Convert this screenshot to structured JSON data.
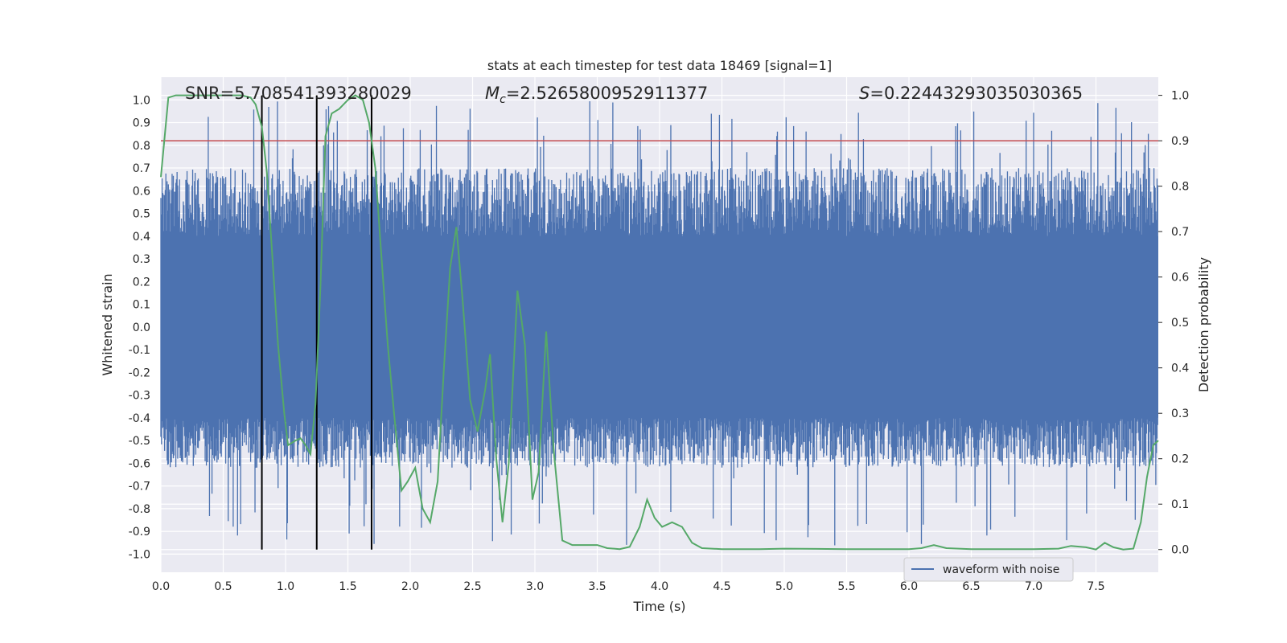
{
  "chart_data": {
    "type": "line",
    "title": "stats at each timestep for test data 18469 [signal=1]",
    "xlabel": "Time (s)",
    "ylabel_left": "Whitened strain",
    "ylabel_right": "Detection probability",
    "xlim": [
      0,
      8
    ],
    "ylim_left": [
      -1.08,
      1.1
    ],
    "ylim_right": [
      -0.05,
      1.04
    ],
    "x_ticks": [
      "0.0",
      "0.5",
      "1.0",
      "1.5",
      "2.0",
      "2.5",
      "3.0",
      "3.5",
      "4.0",
      "4.5",
      "5.0",
      "5.5",
      "6.0",
      "6.5",
      "7.0",
      "7.5"
    ],
    "x_tick_values": [
      0,
      0.5,
      1,
      1.5,
      2,
      2.5,
      3,
      3.5,
      4,
      4.5,
      5,
      5.5,
      6,
      6.5,
      7,
      7.5
    ],
    "y_left_ticks": [
      "1.0",
      "0.9",
      "0.8",
      "0.7",
      "0.6",
      "0.5",
      "0.4",
      "0.3",
      "0.2",
      "0.1",
      "0.0",
      "-0.1",
      "-0.2",
      "-0.3",
      "-0.4",
      "-0.5",
      "-0.6",
      "-0.7",
      "-0.8",
      "-0.9",
      "-1.0"
    ],
    "y_left_tick_values": [
      1.0,
      0.9,
      0.8,
      0.7,
      0.6,
      0.5,
      0.4,
      0.3,
      0.2,
      0.1,
      0.0,
      -0.1,
      -0.2,
      -0.3,
      -0.4,
      -0.5,
      -0.6,
      -0.7,
      -0.8,
      -0.9,
      -1.0
    ],
    "y_right_ticks": [
      "1.0",
      "0.9",
      "0.8",
      "0.7",
      "0.6",
      "0.5",
      "0.4",
      "0.3",
      "0.2",
      "0.1",
      "0.0"
    ],
    "y_right_tick_values": [
      1.0,
      0.9,
      0.8,
      0.7,
      0.6,
      0.5,
      0.4,
      0.3,
      0.2,
      0.1,
      0.0
    ],
    "grid": true,
    "legend": {
      "position": "bottom-right",
      "entries": [
        "waveform with noise"
      ]
    },
    "annotations": {
      "snr": "SNR=5.708541393280029",
      "mc_symbol": "M",
      "mc_sub": "c",
      "mc_value": "=2.5265800952911377",
      "s_symbol": "S",
      "s_value": "=0.22443293035030365"
    },
    "threshold": {
      "y_right": 0.9,
      "color": "#c44e52"
    },
    "vertical_lines": {
      "x": [
        0.81,
        1.25,
        1.69
      ],
      "y_right_range": [
        0.0,
        1.0
      ],
      "color": "#000000"
    },
    "waveform": {
      "name": "waveform with noise",
      "color": "#4c72b0",
      "x_range": [
        0,
        8
      ],
      "core_range": [
        -0.4,
        0.4
      ],
      "peak_range": [
        -0.97,
        1.0
      ],
      "sample_count": 1600
    },
    "detection_probability": {
      "color": "#55a868",
      "points": [
        [
          0.0,
          0.82
        ],
        [
          0.06,
          0.995
        ],
        [
          0.12,
          1.0
        ],
        [
          0.3,
          1.0
        ],
        [
          0.5,
          1.0
        ],
        [
          0.65,
          1.0
        ],
        [
          0.72,
          0.995
        ],
        [
          0.76,
          0.98
        ],
        [
          0.81,
          0.93
        ],
        [
          0.85,
          0.83
        ],
        [
          0.9,
          0.62
        ],
        [
          0.94,
          0.45
        ],
        [
          0.99,
          0.3
        ],
        [
          1.02,
          0.23
        ],
        [
          1.08,
          0.24
        ],
        [
          1.12,
          0.245
        ],
        [
          1.16,
          0.23
        ],
        [
          1.2,
          0.21
        ],
        [
          1.24,
          0.32
        ],
        [
          1.28,
          0.58
        ],
        [
          1.32,
          0.91
        ],
        [
          1.37,
          0.96
        ],
        [
          1.43,
          0.97
        ],
        [
          1.5,
          0.99
        ],
        [
          1.56,
          1.0
        ],
        [
          1.62,
          0.99
        ],
        [
          1.67,
          0.94
        ],
        [
          1.72,
          0.84
        ],
        [
          1.76,
          0.68
        ],
        [
          1.82,
          0.45
        ],
        [
          1.87,
          0.3
        ],
        [
          1.93,
          0.13
        ],
        [
          1.98,
          0.15
        ],
        [
          2.04,
          0.18
        ],
        [
          2.1,
          0.09
        ],
        [
          2.16,
          0.06
        ],
        [
          2.22,
          0.15
        ],
        [
          2.27,
          0.4
        ],
        [
          2.32,
          0.62
        ],
        [
          2.37,
          0.71
        ],
        [
          2.42,
          0.55
        ],
        [
          2.48,
          0.33
        ],
        [
          2.54,
          0.26
        ],
        [
          2.6,
          0.35
        ],
        [
          2.64,
          0.43
        ],
        [
          2.69,
          0.2
        ],
        [
          2.74,
          0.06
        ],
        [
          2.79,
          0.19
        ],
        [
          2.86,
          0.57
        ],
        [
          2.92,
          0.45
        ],
        [
          2.98,
          0.11
        ],
        [
          3.03,
          0.17
        ],
        [
          3.09,
          0.48
        ],
        [
          3.15,
          0.22
        ],
        [
          3.22,
          0.02
        ],
        [
          3.3,
          0.01
        ],
        [
          3.42,
          0.01
        ],
        [
          3.5,
          0.01
        ],
        [
          3.58,
          0.003
        ],
        [
          3.68,
          0.001
        ],
        [
          3.76,
          0.006
        ],
        [
          3.84,
          0.05
        ],
        [
          3.9,
          0.11
        ],
        [
          3.96,
          0.07
        ],
        [
          4.02,
          0.05
        ],
        [
          4.1,
          0.06
        ],
        [
          4.18,
          0.05
        ],
        [
          4.26,
          0.015
        ],
        [
          4.34,
          0.003
        ],
        [
          4.5,
          0.001
        ],
        [
          4.8,
          0.001
        ],
        [
          5.0,
          0.002
        ],
        [
          5.5,
          0.001
        ],
        [
          6.0,
          0.001
        ],
        [
          6.1,
          0.003
        ],
        [
          6.2,
          0.01
        ],
        [
          6.3,
          0.003
        ],
        [
          6.5,
          0.001
        ],
        [
          7.0,
          0.001
        ],
        [
          7.2,
          0.002
        ],
        [
          7.3,
          0.008
        ],
        [
          7.42,
          0.005
        ],
        [
          7.5,
          0.0
        ],
        [
          7.57,
          0.015
        ],
        [
          7.64,
          0.005
        ],
        [
          7.72,
          0.0
        ],
        [
          7.8,
          0.002
        ],
        [
          7.86,
          0.06
        ],
        [
          7.91,
          0.16
        ],
        [
          7.96,
          0.23
        ],
        [
          8.0,
          0.24
        ]
      ]
    }
  }
}
